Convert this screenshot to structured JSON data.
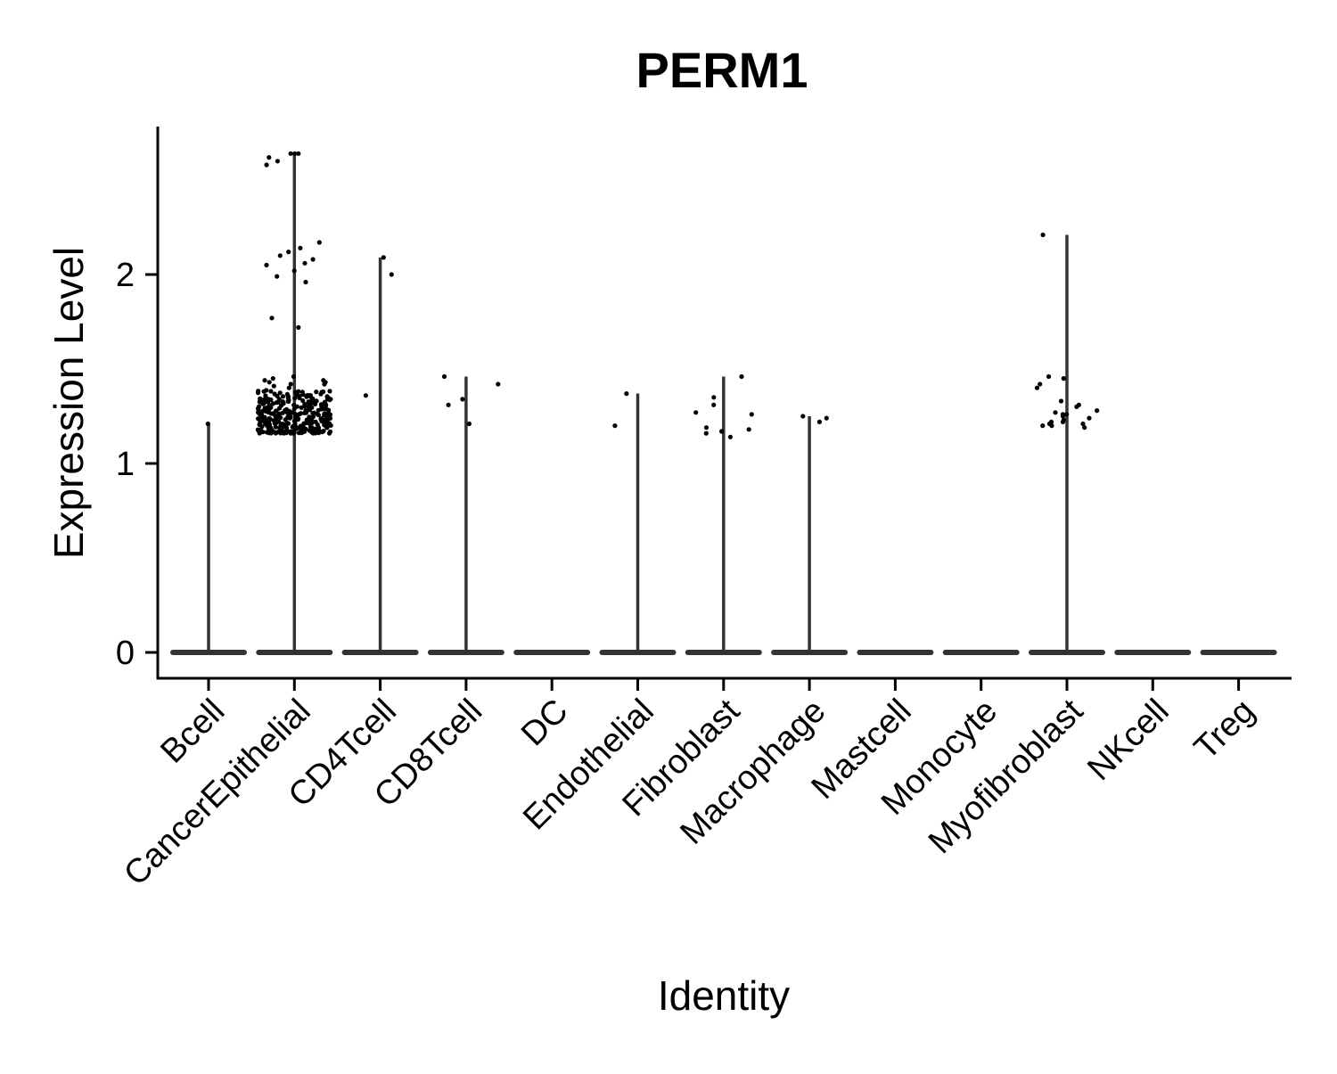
{
  "chart_data": {
    "type": "violin",
    "title": "PERM1",
    "xlabel": "Identity",
    "ylabel": "Expression Level",
    "ylim": [
      -0.13,
      2.78
    ],
    "yticks": [
      0,
      1,
      2
    ],
    "grid": false,
    "legend": "none",
    "colors": {
      "violin": "#333333",
      "points": "#000000",
      "axis": "#000000"
    },
    "categories": [
      "Bcell",
      "CancerEpithelial",
      "CD4Tcell",
      "CD8Tcell",
      "DC",
      "Endothelial",
      "Fibroblast",
      "Macrophage",
      "Mastcell",
      "Monocyte",
      "Myofibroblast",
      "NKcell",
      "Treg"
    ],
    "max_values": [
      1.21,
      2.64,
      2.09,
      1.46,
      0,
      1.37,
      1.46,
      1.25,
      0,
      0,
      2.21,
      0,
      0
    ],
    "dense_cluster": {
      "category": "CancerEpithelial",
      "min": 1.16,
      "max": 1.39,
      "count": 320
    },
    "points": [
      {
        "category": "Bcell",
        "values": [
          1.21
        ]
      },
      {
        "category": "CancerEpithelial",
        "values": [
          2.64,
          2.62,
          2.6,
          2.64,
          2.64,
          2.58,
          2.17,
          2.14,
          2.12,
          2.1,
          2.08,
          2.06,
          2.05,
          2.02,
          1.99,
          1.96,
          1.77,
          1.72,
          1.46,
          1.45,
          1.44,
          1.44,
          1.43,
          1.43,
          1.42,
          1.42,
          1.41,
          1.4
        ]
      },
      {
        "category": "CD4Tcell",
        "values": [
          2.09,
          2.0,
          1.36
        ]
      },
      {
        "category": "CD8Tcell",
        "values": [
          1.46,
          1.42,
          1.34,
          1.31,
          1.21
        ]
      },
      {
        "category": "Endothelial",
        "values": [
          1.37,
          1.2
        ]
      },
      {
        "category": "Fibroblast",
        "values": [
          1.46,
          1.35,
          1.31,
          1.27,
          1.26,
          1.19,
          1.18,
          1.17,
          1.16,
          1.14
        ]
      },
      {
        "category": "Macrophage",
        "values": [
          1.25,
          1.24,
          1.22
        ]
      },
      {
        "category": "Myofibroblast",
        "values": [
          2.21,
          1.46,
          1.45,
          1.42,
          1.4,
          1.33,
          1.31,
          1.3,
          1.28,
          1.27,
          1.26,
          1.26,
          1.25,
          1.24,
          1.23,
          1.22,
          1.22,
          1.21,
          1.21,
          1.2,
          1.2,
          1.19
        ]
      }
    ]
  }
}
